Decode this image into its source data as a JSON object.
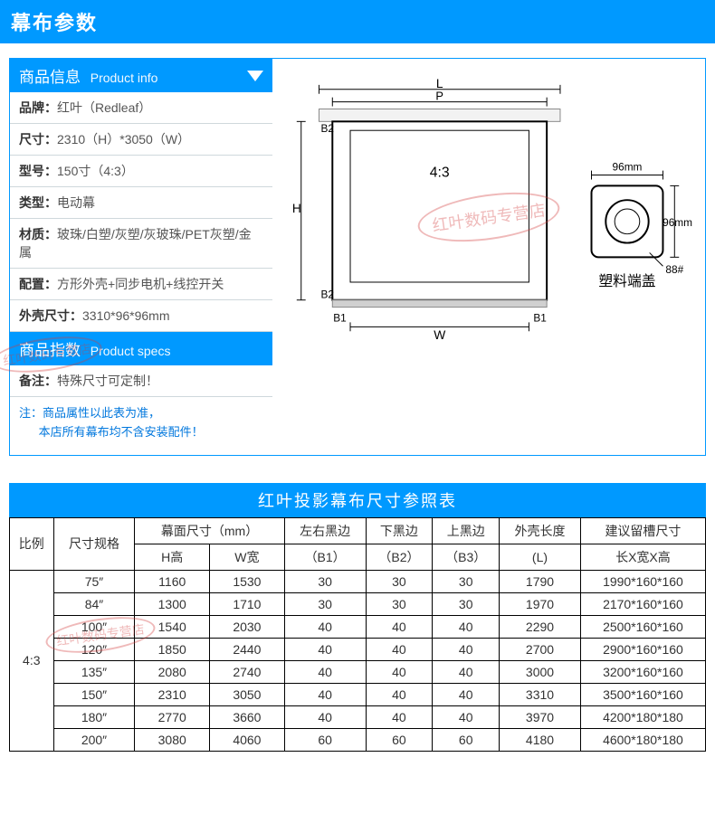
{
  "colors": {
    "brand_blue": "#0099ff",
    "text_dark": "#333333",
    "text_gray": "#555555",
    "border_gray": "#cfd8dc",
    "table_border": "#000000",
    "watermark_red": "#d33a3a",
    "note_blue": "#0077dd",
    "white": "#ffffff"
  },
  "page_title": "幕布参数",
  "product_info": {
    "header_cn": "商品信息",
    "header_en": "Product info",
    "rows": [
      {
        "label": "品牌：",
        "value": "红叶（Redleaf）"
      },
      {
        "label": "尺寸：",
        "value": "2310（H）*3050（W）"
      },
      {
        "label": "型号：",
        "value": "150寸（4:3）"
      },
      {
        "label": "类型：",
        "value": "电动幕"
      },
      {
        "label": "材质：",
        "value": "玻珠/白塑/灰塑/灰玻珠/PET灰塑/金属"
      },
      {
        "label": "配置：",
        "value": "方形外壳+同步电机+线控开关"
      },
      {
        "label": "外壳尺寸：",
        "value": "3310*96*96mm"
      }
    ]
  },
  "product_specs": {
    "header_cn": "商品指数",
    "header_en": "Product specs",
    "remark_label": "备注：",
    "remark_value": "特殊尺寸可定制！",
    "note_label": "注：",
    "note_line1": "商品属性以此表为准，",
    "note_line2": "本店所有幕布均不含安装配件！"
  },
  "watermark_text": "红叶数码专营店",
  "diagram": {
    "labels": {
      "L": "L",
      "P": "P",
      "H": "H",
      "W": "W",
      "B1": "B1",
      "B2": "B2",
      "ratio": "4:3",
      "side_w": "96mm",
      "side_h": "96mm",
      "cap_num": "88#",
      "cap_label": "塑料端盖"
    },
    "stroke": "#000000",
    "fill_body": "#f8f8f8"
  },
  "size_table": {
    "title": "红叶投影幕布尺寸参照表",
    "head_row1": [
      "比例",
      "尺寸规格",
      "幕面尺寸（mm）",
      "左右黑边",
      "下黑边",
      "上黑边",
      "外壳长度",
      "建议留槽尺寸"
    ],
    "head_row2": [
      "H高",
      "W宽",
      "（B1）",
      "（B2）",
      "（B3）",
      "(L)",
      "长X宽X高"
    ],
    "ratio_label": "4:3",
    "rows": [
      [
        "75″",
        "1160",
        "1530",
        "30",
        "30",
        "30",
        "1790",
        "1990*160*160"
      ],
      [
        "84″",
        "1300",
        "1710",
        "30",
        "30",
        "30",
        "1970",
        "2170*160*160"
      ],
      [
        "100″",
        "1540",
        "2030",
        "40",
        "40",
        "40",
        "2290",
        "2500*160*160"
      ],
      [
        "120″",
        "1850",
        "2440",
        "40",
        "40",
        "40",
        "2700",
        "2900*160*160"
      ],
      [
        "135″",
        "2080",
        "2740",
        "40",
        "40",
        "40",
        "3000",
        "3200*160*160"
      ],
      [
        "150″",
        "2310",
        "3050",
        "40",
        "40",
        "40",
        "3310",
        "3500*160*160"
      ],
      [
        "180″",
        "2770",
        "3660",
        "40",
        "40",
        "40",
        "3970",
        "4200*180*180"
      ],
      [
        "200″",
        "3080",
        "4060",
        "60",
        "60",
        "60",
        "4180",
        "4600*180*180"
      ]
    ]
  }
}
